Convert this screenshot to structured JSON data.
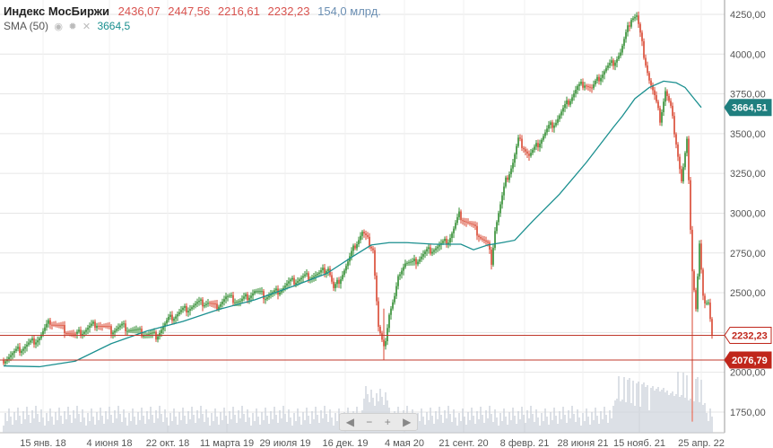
{
  "legend": {
    "title": "Индекс МосБиржи",
    "open": "2436,07",
    "high": "2447,56",
    "low": "2216,61",
    "close": "2232,23",
    "volume": "154,0 млрд.",
    "sma_label": "SMA (50)",
    "sma_value": "3664,5"
  },
  "zoom_controls": [
    "◀",
    "−",
    "+",
    "▶"
  ],
  "colors": {
    "up": "#2e8b2e",
    "down": "#d9452f",
    "sma": "#1a8f8f",
    "hline": "#c0392b",
    "grid": "#e6e6e6",
    "volume": "#c5ccd6"
  },
  "chart_data": {
    "type": "candlestick",
    "title": "Индекс МосБиржи",
    "y_ticks": [
      "1750,00",
      "2000,00",
      "2250,00",
      "2500,00",
      "2750,00",
      "3000,00",
      "3250,00",
      "3500,00",
      "3750,00",
      "4000,00",
      "4250,00"
    ],
    "y_tick_values": [
      1750,
      2000,
      2250,
      2500,
      2750,
      3000,
      3250,
      3500,
      3750,
      4000,
      4250
    ],
    "x_ticks": [
      "15 янв. 18",
      "4 июня 18",
      "22 окт. 18",
      "11 марта 19",
      "29 июля 19",
      "16 дек. 19",
      "4 мая 20",
      "21 сент. 20",
      "8 февр. 21",
      "28 июня 21",
      "15 нояб. 21",
      "25 апр. 22"
    ],
    "ylim": [
      1620,
      4340
    ],
    "price_labels": [
      {
        "text": "3664,51",
        "value": 3664.51,
        "kind": "sma"
      },
      {
        "text": "2232,23",
        "value": 2232.23,
        "kind": "close"
      },
      {
        "text": "2076,79",
        "value": 2076.79,
        "kind": "level"
      }
    ],
    "horizontal_lines": [
      2232.23,
      2076.79
    ],
    "price_path": [
      [
        0,
        2080
      ],
      [
        10,
        2150
      ],
      [
        20,
        2220
      ],
      [
        26,
        2320
      ],
      [
        34,
        2270
      ],
      [
        40,
        2230
      ],
      [
        52,
        2310
      ],
      [
        60,
        2260
      ],
      [
        66,
        2290
      ],
      [
        76,
        2250
      ],
      [
        85,
        2230
      ],
      [
        92,
        2330
      ],
      [
        100,
        2390
      ],
      [
        108,
        2430
      ],
      [
        114,
        2440
      ],
      [
        118,
        2410
      ],
      [
        124,
        2470
      ],
      [
        132,
        2445
      ],
      [
        140,
        2510
      ],
      [
        146,
        2475
      ],
      [
        152,
        2505
      ],
      [
        159,
        2560
      ],
      [
        168,
        2600
      ],
      [
        176,
        2615
      ],
      [
        181,
        2660
      ],
      [
        184,
        2520
      ],
      [
        187,
        2580
      ],
      [
        192,
        2690
      ],
      [
        196,
        2800
      ],
      [
        200,
        2880
      ],
      [
        203,
        2830
      ],
      [
        206,
        2780
      ],
      [
        209,
        2280
      ],
      [
        212,
        2140
      ],
      [
        215,
        2370
      ],
      [
        218,
        2470
      ],
      [
        221,
        2640
      ],
      [
        224,
        2690
      ],
      [
        228,
        2680
      ],
      [
        232,
        2720
      ],
      [
        236,
        2760
      ],
      [
        240,
        2780
      ],
      [
        244,
        2800
      ],
      [
        248,
        2830
      ],
      [
        251,
        2900
      ],
      [
        254,
        2990
      ],
      [
        258,
        2950
      ],
      [
        262,
        2910
      ],
      [
        266,
        2850
      ],
      [
        270,
        2800
      ],
      [
        272,
        2700
      ],
      [
        274,
        2900
      ],
      [
        277,
        3050
      ],
      [
        280,
        3200
      ],
      [
        284,
        3320
      ],
      [
        287,
        3460
      ],
      [
        290,
        3420
      ],
      [
        293,
        3360
      ],
      [
        296,
        3400
      ],
      [
        300,
        3470
      ],
      [
        304,
        3540
      ],
      [
        308,
        3580
      ],
      [
        312,
        3650
      ],
      [
        316,
        3720
      ],
      [
        320,
        3790
      ],
      [
        324,
        3820
      ],
      [
        328,
        3780
      ],
      [
        332,
        3850
      ],
      [
        336,
        3910
      ],
      [
        340,
        3950
      ],
      [
        344,
        4010
      ],
      [
        347,
        4120
      ],
      [
        350,
        4230
      ],
      [
        353,
        4240
      ],
      [
        355,
        4120
      ],
      [
        357,
        4000
      ],
      [
        360,
        3840
      ],
      [
        363,
        3730
      ],
      [
        366,
        3590
      ],
      [
        369,
        3770
      ],
      [
        372,
        3660
      ],
      [
        375,
        3450
      ],
      [
        378,
        3200
      ],
      [
        381,
        3450
      ],
      [
        384,
        2650
      ],
      [
        386,
        2400
      ],
      [
        388,
        2800
      ],
      [
        390,
        2460
      ],
      [
        393,
        2450
      ],
      [
        395,
        2232
      ]
    ],
    "sma_path": [
      [
        0,
        2040
      ],
      [
        20,
        2035
      ],
      [
        40,
        2070
      ],
      [
        60,
        2180
      ],
      [
        80,
        2260
      ],
      [
        100,
        2320
      ],
      [
        120,
        2395
      ],
      [
        140,
        2455
      ],
      [
        160,
        2535
      ],
      [
        180,
        2620
      ],
      [
        195,
        2730
      ],
      [
        205,
        2800
      ],
      [
        215,
        2815
      ],
      [
        225,
        2815
      ],
      [
        240,
        2805
      ],
      [
        255,
        2805
      ],
      [
        262,
        2770
      ],
      [
        270,
        2800
      ],
      [
        278,
        2815
      ],
      [
        285,
        2830
      ],
      [
        295,
        2950
      ],
      [
        310,
        3120
      ],
      [
        325,
        3320
      ],
      [
        340,
        3540
      ],
      [
        345,
        3610
      ],
      [
        352,
        3720
      ],
      [
        360,
        3790
      ],
      [
        368,
        3830
      ],
      [
        375,
        3820
      ],
      [
        380,
        3790
      ],
      [
        385,
        3720
      ],
      [
        389,
        3664.5
      ]
    ],
    "volume_note": "volume bars along bottom, spike near 25 апр. 22"
  }
}
